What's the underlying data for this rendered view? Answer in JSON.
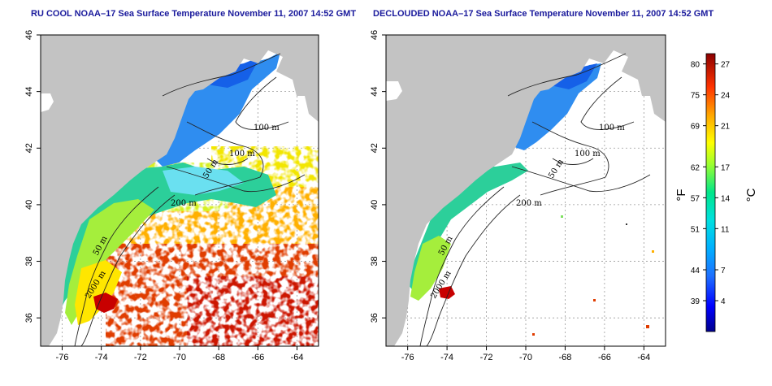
{
  "maps": [
    {
      "id": "left",
      "title": "RU COOL NOAA–17 Sea Surface Temperature November 11, 2007 14:52 GMT",
      "lat_ticks": [
        "46",
        "44",
        "42",
        "40",
        "38",
        "36"
      ],
      "lon_ticks": [
        "-76",
        "-74",
        "-72",
        "-70",
        "-68",
        "-66",
        "-64"
      ],
      "lon_range": [
        -77.1,
        -62.9
      ],
      "lat_range": [
        35,
        46
      ],
      "contour_labels": [
        "100 m",
        "100 m",
        "50 m",
        "200 m",
        "50 m",
        "2000 m"
      ],
      "cloud_masked": false
    },
    {
      "id": "right",
      "title": "DECLOUDED NOAA–17 Sea Surface Temperature November 11, 2007 14:52 GMT",
      "lat_ticks": [
        "46",
        "44",
        "42",
        "40",
        "38",
        "36"
      ],
      "lon_ticks": [
        "-76",
        "-74",
        "-72",
        "-70",
        "-68",
        "-66",
        "-64"
      ],
      "lon_range": [
        -77.1,
        -62.9
      ],
      "lat_range": [
        35,
        46
      ],
      "contour_labels": [
        "100 m",
        "100 m",
        "50 m",
        "200 m",
        "50 m",
        "2000 m"
      ],
      "cloud_masked": true
    }
  ],
  "colorbar": {
    "fahrenheit_ticks": [
      "80",
      "75",
      "69",
      "62",
      "57",
      "51",
      "44",
      "39"
    ],
    "celsius_ticks": [
      "27",
      "24",
      "21",
      "17",
      "14",
      "11",
      "7",
      "4"
    ],
    "celsius_values": [
      27,
      24,
      21,
      17,
      14,
      11,
      7,
      4
    ],
    "range_celsius": [
      1,
      28
    ],
    "fahrenheit_label": "°F",
    "celsius_label": "°C",
    "colors": [
      "#00008b",
      "#0000ff",
      "#1e90ff",
      "#00bfff",
      "#00e5e5",
      "#00e68a",
      "#7fff00",
      "#ffff00",
      "#ffa500",
      "#ff4500",
      "#cc0000",
      "#8b0000"
    ]
  },
  "colors": {
    "land": "#c3c3c3",
    "title": "#1a1a9c",
    "background": "#ffffff"
  }
}
